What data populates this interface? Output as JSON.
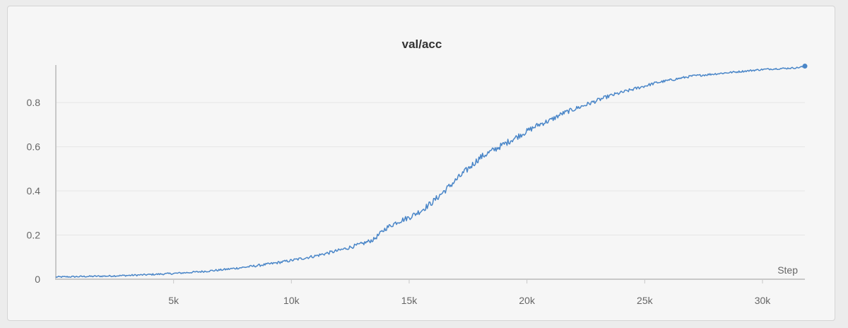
{
  "chart_data": {
    "type": "line",
    "title": "val/acc",
    "xlabel": "Step",
    "ylabel": "",
    "xlim": [
      0,
      31800
    ],
    "ylim": [
      0,
      0.97
    ],
    "grid": true,
    "x_ticks": [
      {
        "value": 5000,
        "label": "5k"
      },
      {
        "value": 10000,
        "label": "10k"
      },
      {
        "value": 15000,
        "label": "15k"
      },
      {
        "value": 20000,
        "label": "20k"
      },
      {
        "value": 25000,
        "label": "25k"
      },
      {
        "value": 30000,
        "label": "30k"
      }
    ],
    "y_ticks": [
      {
        "value": 0,
        "label": "0"
      },
      {
        "value": 0.2,
        "label": "0.2"
      },
      {
        "value": 0.4,
        "label": "0.4"
      },
      {
        "value": 0.6,
        "label": "0.6"
      },
      {
        "value": 0.8,
        "label": "0.8"
      }
    ],
    "series": [
      {
        "color": "#4a86c8",
        "x": [
          0,
          1000,
          2000,
          3000,
          4000,
          5000,
          6000,
          7000,
          8000,
          9000,
          10000,
          11000,
          12000,
          13000,
          13500,
          14000,
          14500,
          15000,
          15500,
          16000,
          16500,
          17000,
          17500,
          18000,
          18500,
          19000,
          19500,
          20000,
          20500,
          21000,
          21500,
          22000,
          22500,
          23000,
          23500,
          24000,
          24500,
          25000,
          25500,
          26000,
          26500,
          27000,
          27500,
          28000,
          28500,
          29000,
          29500,
          30000,
          30500,
          31000,
          31500,
          31800
        ],
        "y": [
          0.01,
          0.012,
          0.014,
          0.017,
          0.021,
          0.026,
          0.033,
          0.042,
          0.054,
          0.068,
          0.085,
          0.105,
          0.13,
          0.16,
          0.18,
          0.23,
          0.26,
          0.28,
          0.31,
          0.35,
          0.4,
          0.45,
          0.5,
          0.55,
          0.58,
          0.61,
          0.64,
          0.67,
          0.7,
          0.72,
          0.75,
          0.77,
          0.79,
          0.81,
          0.83,
          0.845,
          0.86,
          0.875,
          0.89,
          0.9,
          0.91,
          0.92,
          0.925,
          0.93,
          0.935,
          0.94,
          0.945,
          0.95,
          0.953,
          0.955,
          0.958,
          0.965
        ]
      }
    ]
  }
}
